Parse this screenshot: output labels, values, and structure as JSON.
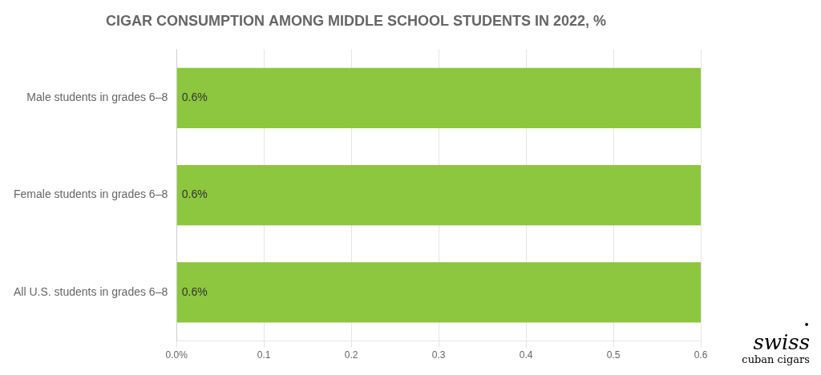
{
  "chart_data": {
    "type": "bar",
    "orientation": "horizontal",
    "title": "CIGAR CONSUMPTION AMONG MIDDLE SCHOOL STUDENTS IN 2022, %",
    "categories": [
      "Male students in grades 6–8",
      "Female students in grades 6–8",
      "All U.S. students in grades 6–8"
    ],
    "values": [
      0.6,
      0.6,
      0.6
    ],
    "value_labels": [
      "0.6%",
      "0.6%",
      "0.6%"
    ],
    "data_labels": true,
    "color": "#8dc63f",
    "xlim": [
      0,
      0.6
    ],
    "xticks": [
      {
        "value": 0.0,
        "label": "0.0%"
      },
      0.1,
      0.2,
      0.3,
      0.4,
      0.5,
      0.6
    ],
    "grid": true,
    "annotations": [
      "•",
      "swiss",
      "cuban cigars"
    ]
  }
}
